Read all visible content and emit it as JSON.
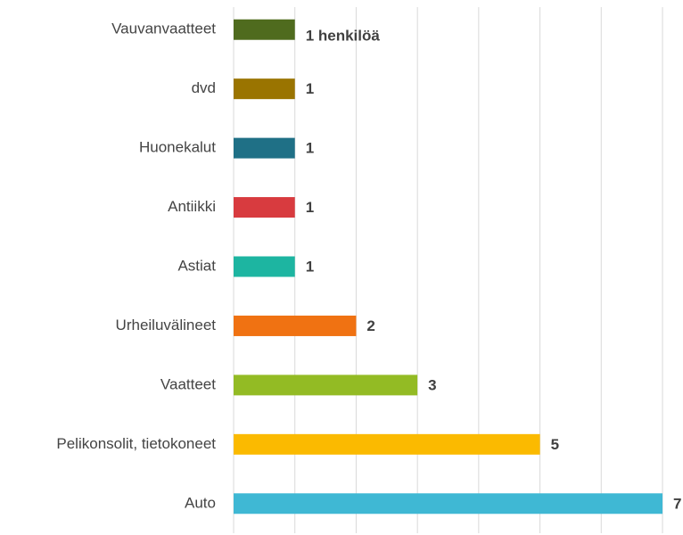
{
  "chart_data": {
    "type": "barh",
    "categories": [
      "Vauvanvaatteet",
      "dvd",
      "Huonekalut",
      "Antiikki",
      "Astiat",
      "Urheiluvälineet",
      "Vaatteet",
      "Pelikonsolit, tietokoneet",
      "Auto"
    ],
    "values": [
      1,
      1,
      1,
      1,
      1,
      2,
      3,
      5,
      7
    ],
    "value_labels": [
      "1 henkilöä",
      "1",
      "1",
      "1",
      "1",
      "2",
      "3",
      "5",
      "7"
    ],
    "colors": [
      "#4f6b1e",
      "#9a7400",
      "#1f7086",
      "#d83b3f",
      "#1db5a1",
      "#f07212",
      "#93bb24",
      "#fbba00",
      "#3fb8d4"
    ],
    "xlim": [
      0,
      7
    ],
    "xticks": [
      0,
      1,
      2,
      3,
      4,
      5,
      6,
      7
    ],
    "grid": true
  }
}
